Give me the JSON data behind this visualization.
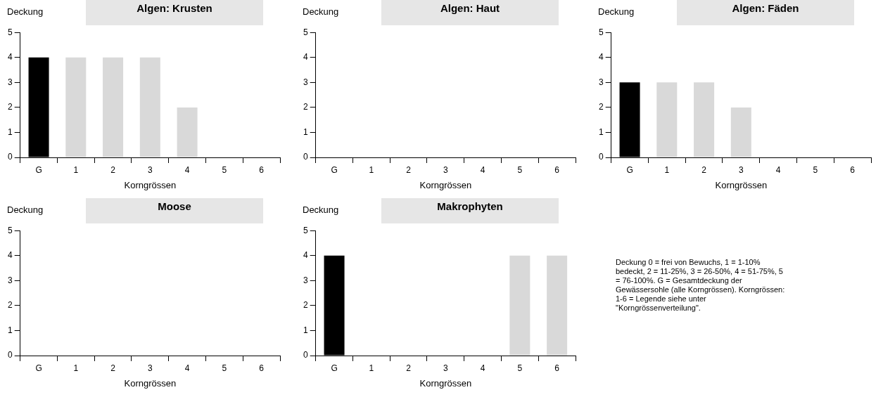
{
  "chart_data": [
    {
      "type": "bar",
      "title": "Algen: Krusten",
      "ylabel": "Deckung",
      "xlabel": "Korngrössen",
      "categories": [
        "G",
        "1",
        "2",
        "3",
        "4",
        "5",
        "6"
      ],
      "values": [
        4,
        4,
        4,
        4,
        2,
        0,
        0
      ],
      "colors": [
        "#000000",
        "#d9d9d9",
        "#d9d9d9",
        "#d9d9d9",
        "#d9d9d9",
        "#d9d9d9",
        "#d9d9d9"
      ],
      "ylim": [
        0,
        5
      ],
      "yticks": [
        0,
        1,
        2,
        3,
        4,
        5
      ]
    },
    {
      "type": "bar",
      "title": "Algen: Haut",
      "ylabel": "Deckung",
      "xlabel": "Korngrössen",
      "categories": [
        "G",
        "1",
        "2",
        "3",
        "4",
        "5",
        "6"
      ],
      "values": [
        0,
        0,
        0,
        0,
        0,
        0,
        0
      ],
      "colors": [
        "#000000",
        "#d9d9d9",
        "#d9d9d9",
        "#d9d9d9",
        "#d9d9d9",
        "#d9d9d9",
        "#d9d9d9"
      ],
      "ylim": [
        0,
        5
      ],
      "yticks": [
        0,
        1,
        2,
        3,
        4,
        5
      ]
    },
    {
      "type": "bar",
      "title": "Algen: Fäden",
      "ylabel": "Deckung",
      "xlabel": "Korngrössen",
      "categories": [
        "G",
        "1",
        "2",
        "3",
        "4",
        "5",
        "6"
      ],
      "values": [
        3,
        3,
        3,
        2,
        0,
        0,
        0
      ],
      "colors": [
        "#000000",
        "#d9d9d9",
        "#d9d9d9",
        "#d9d9d9",
        "#d9d9d9",
        "#d9d9d9",
        "#d9d9d9"
      ],
      "ylim": [
        0,
        5
      ],
      "yticks": [
        0,
        1,
        2,
        3,
        4,
        5
      ]
    },
    {
      "type": "bar",
      "title": "Moose",
      "ylabel": "Deckung",
      "xlabel": "Korngrössen",
      "categories": [
        "G",
        "1",
        "2",
        "3",
        "4",
        "5",
        "6"
      ],
      "values": [
        0,
        0,
        0,
        0,
        0,
        0,
        0
      ],
      "colors": [
        "#000000",
        "#d9d9d9",
        "#d9d9d9",
        "#d9d9d9",
        "#d9d9d9",
        "#d9d9d9",
        "#d9d9d9"
      ],
      "ylim": [
        0,
        5
      ],
      "yticks": [
        0,
        1,
        2,
        3,
        4,
        5
      ]
    },
    {
      "type": "bar",
      "title": "Makrophyten",
      "ylabel": "Deckung",
      "xlabel": "Korngrössen",
      "categories": [
        "G",
        "1",
        "2",
        "3",
        "4",
        "5",
        "6"
      ],
      "values": [
        4,
        0,
        0,
        0,
        0,
        4,
        4
      ],
      "colors": [
        "#000000",
        "#d9d9d9",
        "#d9d9d9",
        "#d9d9d9",
        "#d9d9d9",
        "#d9d9d9",
        "#d9d9d9"
      ],
      "ylim": [
        0,
        5
      ],
      "yticks": [
        0,
        1,
        2,
        3,
        4,
        5
      ]
    },
    {
      "type": "other",
      "annotations": [
        "Deckung 0 = frei von Bewuchs, 1 = 1-10% bedeckt, 2 = 11-25%, 3 = 26-50%, 4 = 51-75%, 5 = 76-100%. G = Gesamtdeckung der Gewässersohle (alle Korngrössen). Korngrössen: 1-6 = Legende siehe unter \"Korngrössenverteilung\"."
      ]
    }
  ]
}
